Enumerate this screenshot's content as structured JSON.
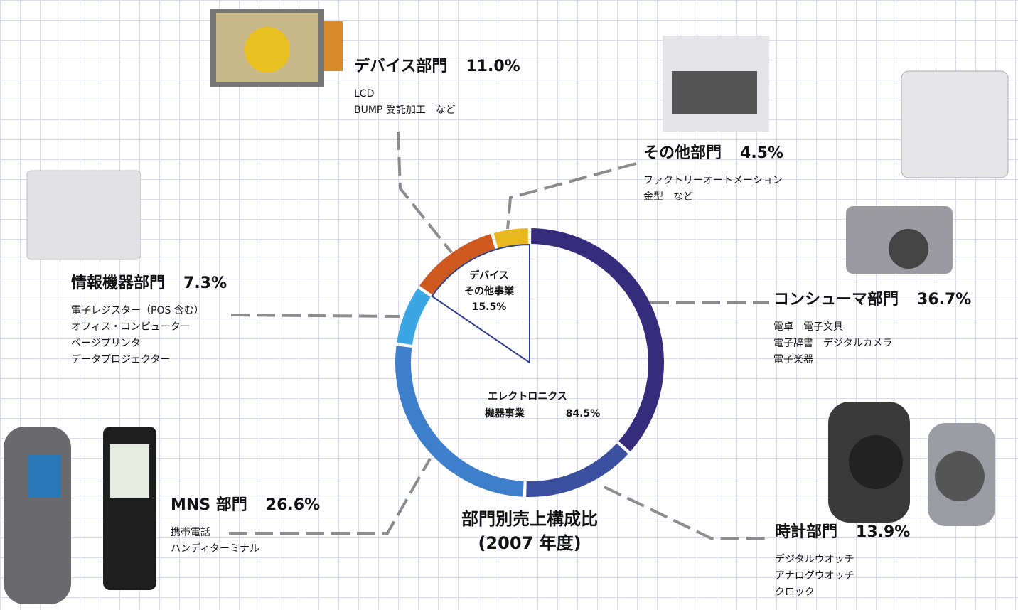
{
  "chart_data": {
    "type": "donut",
    "title": "部門別売上構成比",
    "subtitle": "(2007 年度)",
    "categories": [
      "コンシューマ部門",
      "時計部門",
      "MNS 部門",
      "情報機器部門",
      "デバイス部門",
      "その他部門"
    ],
    "values": [
      36.7,
      13.9,
      26.6,
      7.3,
      11.0,
      4.5
    ],
    "value_labels": [
      "36.7%",
      "13.9%",
      "26.6%",
      "7.3%",
      "11.0%",
      "4.5%"
    ],
    "colors": [
      "#372c7c",
      "#3b4f9f",
      "#3d7fca",
      "#3aa6e4",
      "#cf5a20",
      "#e6b81e"
    ],
    "descriptions": [
      [
        "電卓　電子文具",
        "電子辞書　デジタルカメラ",
        "電子楽器"
      ],
      [
        "デジタルウオッチ",
        "アナログウオッチ",
        "クロック"
      ],
      [
        "携帯電話",
        "ハンディターミナル"
      ],
      [
        "電子レジスター（POS 含む）",
        "オフィス・コンピューター",
        "ページプリンタ",
        "データプロジェクター"
      ],
      [
        "LCD",
        "BUMP 受託加工　など"
      ],
      [
        "ファクトリーオートメーション",
        "金型　など"
      ]
    ],
    "groups": [
      {
        "label": [
          "デバイス",
          "その他事業"
        ],
        "value": 15.5,
        "value_label": "15.5%"
      },
      {
        "label": [
          "エレクトロニクス",
          "機器事業"
        ],
        "value": 84.5,
        "value_label": "84.5%"
      }
    ]
  }
}
